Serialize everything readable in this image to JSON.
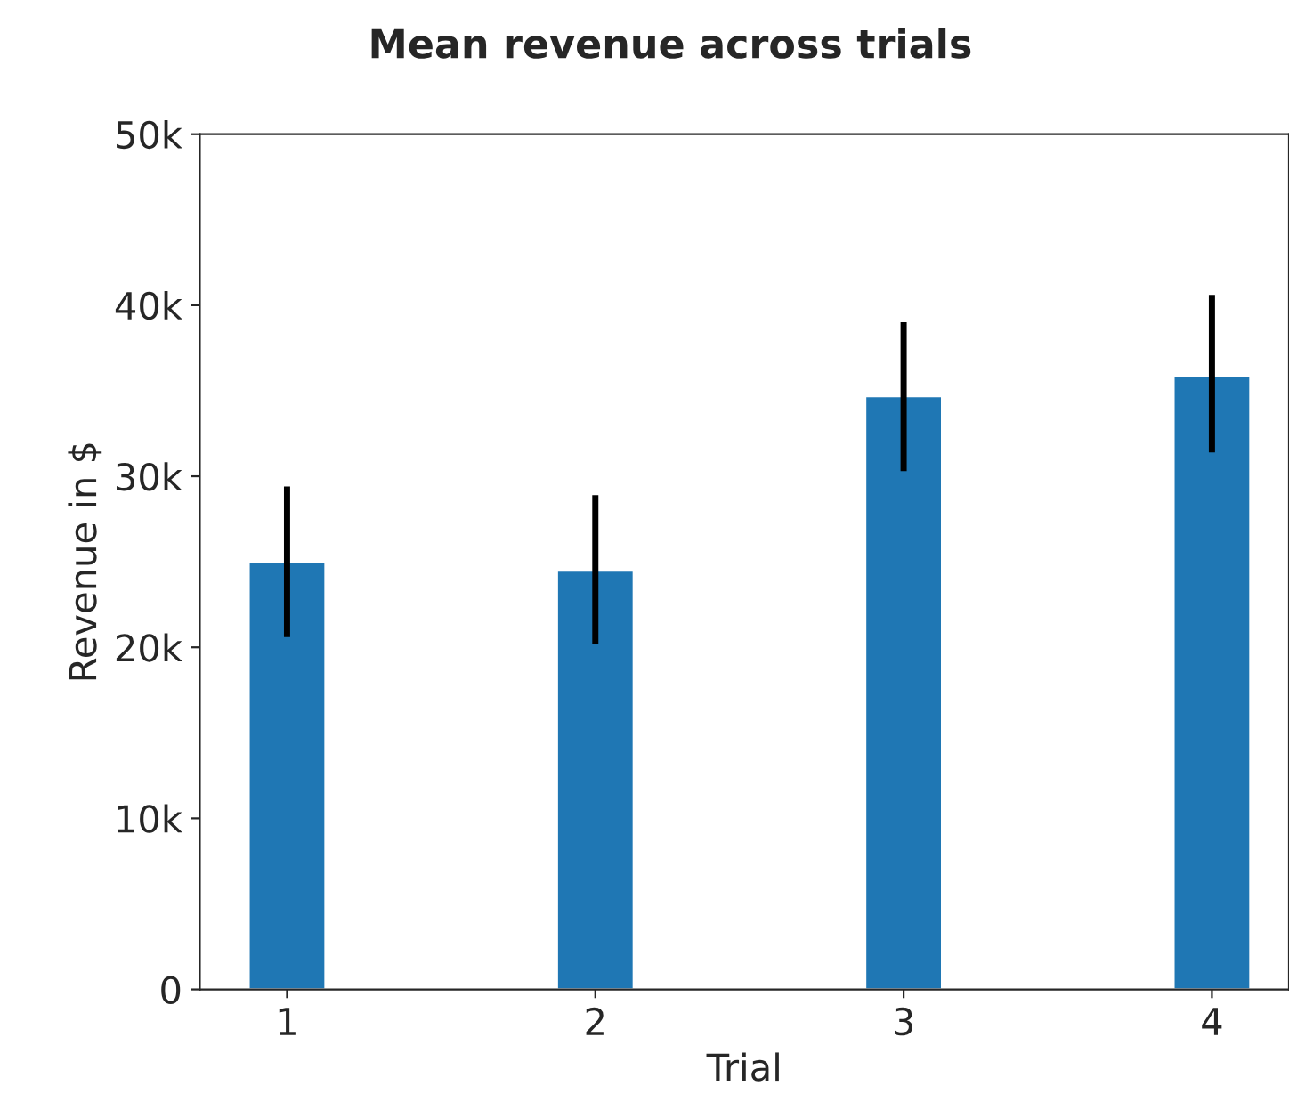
{
  "chart_data": {
    "type": "bar",
    "title": "Mean revenue across trials",
    "xlabel": "Trial",
    "ylabel": "Revenue in $",
    "categories": [
      "1",
      "2",
      "3",
      "4"
    ],
    "values": [
      25000,
      24500,
      34700,
      35900
    ],
    "errors": [
      [
        20600,
        29400
      ],
      [
        20200,
        28900
      ],
      [
        30300,
        39000
      ],
      [
        31400,
        40600
      ]
    ],
    "color": "#1f77b4",
    "ylim": [
      0,
      50000
    ],
    "yticks": [
      {
        "value": 0,
        "label": "0"
      },
      {
        "value": 10000,
        "label": "10k"
      },
      {
        "value": 20000,
        "label": "20k"
      },
      {
        "value": 30000,
        "label": "30k"
      },
      {
        "value": 40000,
        "label": "40k"
      },
      {
        "value": 50000,
        "label": "50k"
      }
    ],
    "grid": false
  }
}
